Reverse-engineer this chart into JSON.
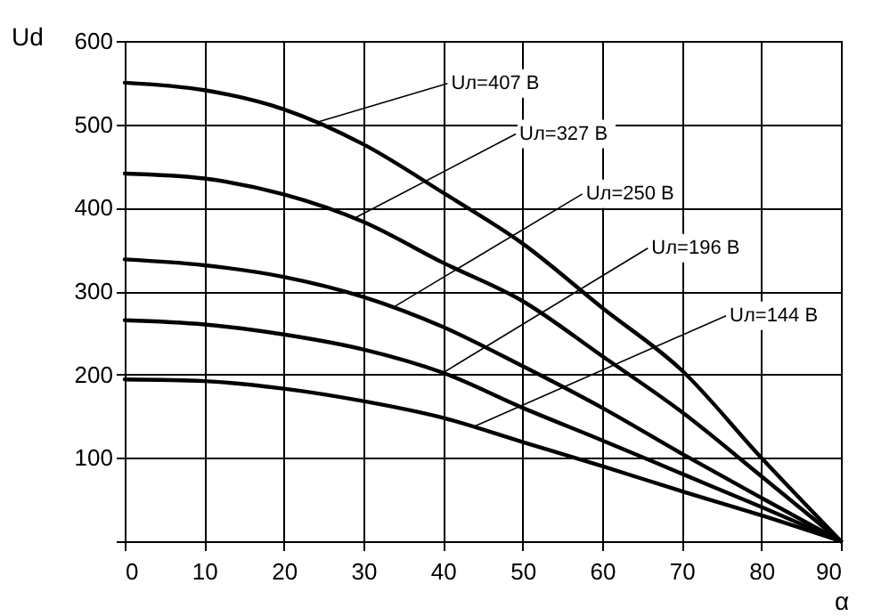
{
  "chart_data": {
    "type": "line",
    "xlabel": "α",
    "ylabel": "Ud",
    "x": [
      0,
      10,
      20,
      30,
      40,
      50,
      60,
      70,
      80,
      90
    ],
    "series": [
      {
        "color": "#000000",
        "values": [
          550,
          541,
          518,
          476,
          418,
          357,
          280,
          205,
          100,
          0
        ]
      },
      {
        "color": "#000000",
        "values": [
          441,
          435,
          416,
          383,
          334,
          288,
          222,
          155,
          78,
          0
        ]
      },
      {
        "color": "#000000",
        "values": [
          338,
          331,
          317,
          293,
          257,
          210,
          160,
          105,
          52,
          0
        ]
      },
      {
        "color": "#000000",
        "values": [
          265,
          260,
          248,
          230,
          202,
          160,
          121,
          81,
          41,
          0
        ]
      },
      {
        "color": "#000000",
        "values": [
          194,
          192,
          183,
          168,
          148,
          119,
          90,
          60,
          31,
          0
        ]
      }
    ],
    "annotations": [
      {
        "text": "Uл=407 В",
        "x": 24,
        "y": 502
      },
      {
        "text": "Uл=327 В",
        "x": 29,
        "y": 388
      },
      {
        "text": "Uл=250 В",
        "x": 34,
        "y": 282
      },
      {
        "text": "Uл=196 В",
        "x": 40,
        "y": 202
      },
      {
        "text": "Uл=144 В",
        "x": 44,
        "y": 138
      }
    ],
    "xlim": [
      0,
      90
    ],
    "xticks": [
      0,
      10,
      20,
      30,
      40,
      50,
      60,
      70,
      80,
      90
    ],
    "ylim": [
      0,
      600
    ],
    "yticks": [
      {
        "value": 0,
        "label": null
      },
      100,
      200,
      300,
      400,
      500,
      600
    ],
    "grid": true,
    "marker": "none",
    "line_style": "solid"
  }
}
